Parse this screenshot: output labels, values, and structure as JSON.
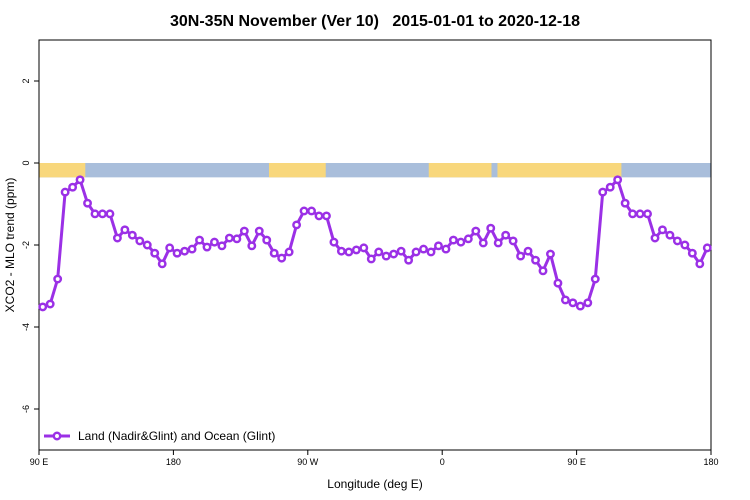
{
  "chart_data": {
    "type": "line",
    "title": "30N-35N November (Ver 10)   2015-01-01 to 2020-12-18",
    "x_label": "Longitude (deg E)",
    "y_label": "XCO2 - MLO trend (ppm)",
    "xlim": [
      90,
      540
    ],
    "ylim": [
      -7,
      3
    ],
    "xticks": [
      {
        "value": 90,
        "label": "90 E"
      },
      180,
      {
        "value": 270,
        "label": "90 W"
      },
      {
        "value": 360,
        "label": "0"
      },
      {
        "value": 450,
        "label": "90 E"
      },
      {
        "value": 540,
        "label": "180"
      }
    ],
    "yticks": [
      2,
      0,
      -2,
      -4,
      -6
    ],
    "legend": "bottom-left",
    "band": {
      "ylim": [
        -0.35,
        0
      ],
      "land_color": "#f8d77c",
      "ocean_color": "#a9bedb",
      "land": [
        [
          90,
          121
        ],
        [
          244,
          282
        ],
        [
          351,
          393
        ],
        [
          397,
          480
        ]
      ]
    },
    "series": [
      {
        "name": "Land (Nadir&Glint) and Ocean (Glint)",
        "color": "#9b30e6",
        "x": [
          92.5,
          97.5,
          102.5,
          107.5,
          112.5,
          117.5,
          122.5,
          127.5,
          132.5,
          137.5,
          142.5,
          147.5,
          152.5,
          157.5,
          162.5,
          167.5,
          172.5,
          177.5,
          182.5,
          187.5,
          192.5,
          197.5,
          202.5,
          207.5,
          212.5,
          217.5,
          222.5,
          227.5,
          232.5,
          237.5,
          242.5,
          247.5,
          252.5,
          257.5,
          262.5,
          267.5,
          272.5,
          277.5,
          282.5,
          287.5,
          292.5,
          297.5,
          302.5,
          307.5,
          312.5,
          317.5,
          322.5,
          327.5,
          332.5,
          337.5,
          342.5,
          347.5,
          352.5,
          357.5,
          362.5,
          367.5,
          372.5,
          377.5,
          382.5,
          387.5,
          392.5,
          397.5,
          402.5,
          407.5,
          412.5,
          417.5,
          422.5,
          427.5,
          432.5,
          437.5,
          442.5,
          447.5,
          452.5,
          457.5,
          462.5,
          467.5,
          472.5,
          477.5,
          482.5,
          487.5,
          492.5,
          497.5,
          502.5,
          507.5,
          512.5,
          517.5,
          522.5,
          527.5,
          532.5,
          537.5
        ],
        "values": [
          -3.51,
          -3.44,
          -2.83,
          -0.71,
          -0.59,
          -0.41,
          -0.98,
          -1.24,
          -1.24,
          -1.24,
          -1.83,
          -1.63,
          -1.76,
          -1.9,
          -2.0,
          -2.2,
          -2.46,
          -2.07,
          -2.2,
          -2.15,
          -2.1,
          -1.88,
          -2.05,
          -1.93,
          -2.02,
          -1.83,
          -1.85,
          -1.66,
          -2.02,
          -1.66,
          -1.88,
          -2.2,
          -2.32,
          -2.17,
          -1.51,
          -1.17,
          -1.17,
          -1.29,
          -1.29,
          -1.93,
          -2.15,
          -2.17,
          -2.12,
          -2.07,
          -2.34,
          -2.17,
          -2.27,
          -2.22,
          -2.15,
          -2.37,
          -2.17,
          -2.1,
          -2.17,
          -2.02,
          -2.1,
          -1.88,
          -1.93,
          -1.85,
          -1.66,
          -1.95,
          -1.59,
          -1.95,
          -1.76,
          -1.9,
          -2.27,
          -2.15,
          -2.37,
          -2.63,
          -2.22,
          -2.93,
          -3.34,
          -3.41,
          -3.49,
          -3.41,
          -2.83,
          -0.71,
          -0.59,
          -0.41,
          -0.98,
          -1.24,
          -1.24,
          -1.24,
          -1.83,
          -1.63,
          -1.76,
          -1.9,
          -2.0,
          -2.2,
          -2.46,
          -2.07
        ]
      }
    ]
  }
}
